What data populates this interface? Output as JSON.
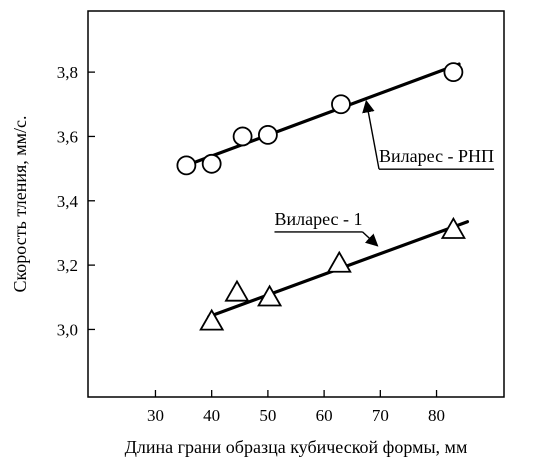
{
  "chart_data": {
    "type": "scatter",
    "title": "",
    "xlabel": "Длина грани образца кубической формы, мм",
    "ylabel": "Скорость тления, мм/с.",
    "xlim": [
      18,
      92
    ],
    "ylim": [
      2.79,
      3.99
    ],
    "x_ticks": [
      30,
      40,
      50,
      60,
      70,
      80
    ],
    "x_tick_labels": [
      "30",
      "40",
      "50",
      "60",
      "70",
      "80"
    ],
    "y_ticks": [
      3.0,
      3.2,
      3.4,
      3.6,
      3.8
    ],
    "y_tick_labels": [
      "3,0",
      "3,2",
      "3,4",
      "3,6",
      "3,8"
    ],
    "grid": false,
    "legend": "none",
    "colors": {
      "ink": "#000000",
      "background": "#ffffff"
    },
    "series": [
      {
        "name": "Виларес - РНП",
        "marker": "circle",
        "x": [
          35.5,
          40,
          45.5,
          50,
          63,
          83
        ],
        "y": [
          3.51,
          3.515,
          3.6,
          3.605,
          3.7,
          3.8
        ],
        "trend": {
          "x": [
            35.5,
            84
          ],
          "y": [
            3.51,
            3.825
          ]
        }
      },
      {
        "name": "Виларес - 1",
        "marker": "triangle",
        "x": [
          40,
          44.5,
          50.3,
          62.7,
          83
        ],
        "y": [
          3.025,
          3.115,
          3.1,
          3.205,
          3.31
        ],
        "trend": {
          "x": [
            39.5,
            85.5
          ],
          "y": [
            3.04,
            3.335
          ]
        }
      }
    ],
    "annotations": [
      {
        "text": "Виларес - РНП",
        "series": 0,
        "label_at": [
          80,
          3.52
        ],
        "arrow_to": [
          67.5,
          3.71
        ]
      },
      {
        "text": "Виларес - 1",
        "series": 1,
        "label_at": [
          59,
          3.325
        ],
        "arrow_to": [
          69.5,
          3.26
        ]
      }
    ]
  }
}
